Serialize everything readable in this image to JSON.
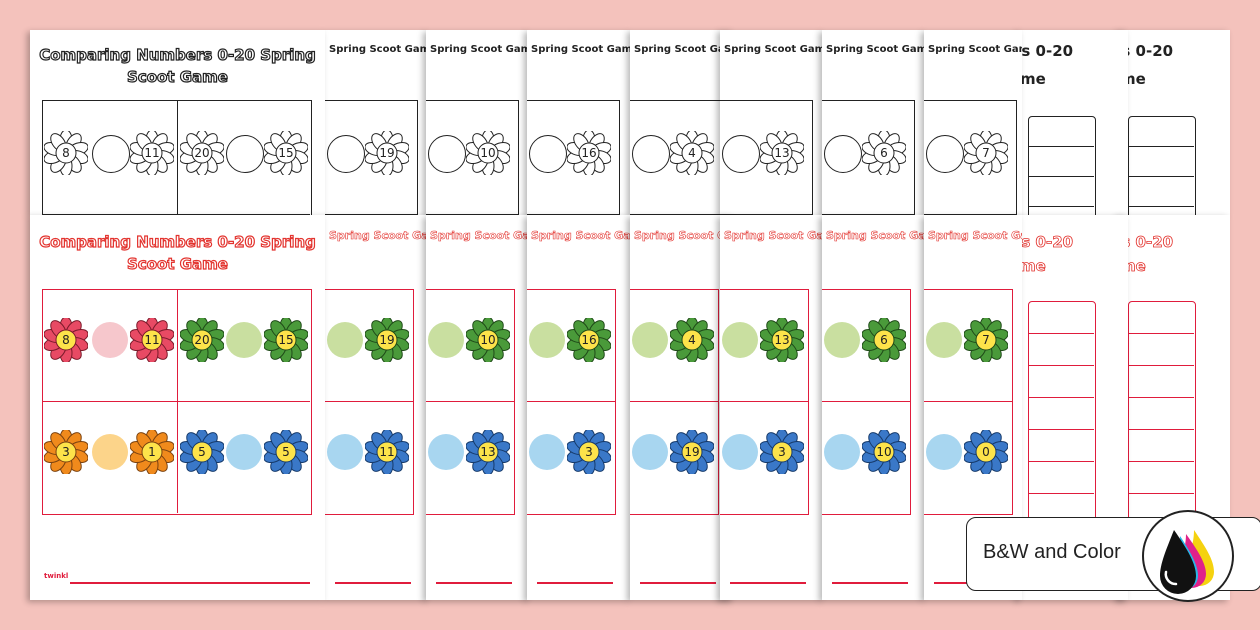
{
  "sheet_title": "Comparing Numbers 0-20 Spring Scoot Game",
  "sheet_title_line1": "Comparing Numbers 0-20 Spring",
  "sheet_title_line2": "Scoot Game",
  "short_title": "Spring Scoot Game",
  "fragment_title_a": "rs 0-20",
  "fragment_title_b": "me",
  "badge_label": "B&W and Color",
  "brand_logo": "twinkl",
  "bw_main_numbers": [
    "8",
    "11",
    "20",
    "15"
  ],
  "bw_strip_numbers": [
    "19",
    "10",
    "16",
    "4",
    "13",
    "6",
    "7"
  ],
  "col_main_row1": [
    "8",
    "11",
    "20",
    "15"
  ],
  "col_main_row2": [
    "3",
    "1",
    "5",
    "5"
  ],
  "col_strip_row1": [
    "19",
    "10",
    "16",
    "4",
    "13",
    "6",
    "7"
  ],
  "col_strip_row2": [
    "11",
    "13",
    "3",
    "19",
    "3",
    "10",
    "0"
  ],
  "colors": {
    "pink_flower": "#e84a64",
    "green_flower": "#4a9a3a",
    "orange_flower": "#f08a1c",
    "blue_flower": "#3a78c8",
    "flower_center": "#fde34a",
    "pink_circle": "#f6c7cc",
    "green_circle": "#c9dfa0",
    "orange_circle": "#fcd48a",
    "blue_circle": "#a8d6f0",
    "red_line": "#e01c3c",
    "background": "#f4c2bc"
  },
  "icons": [
    "flower-icon",
    "ink-drops-icon",
    "twinkl-logo-icon"
  ]
}
